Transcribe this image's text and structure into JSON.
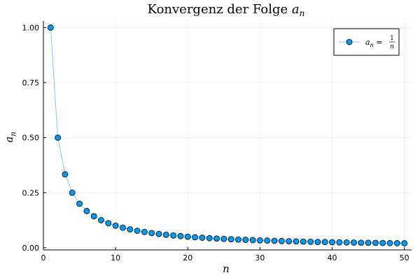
{
  "chart_data": {
    "type": "scatter",
    "title_text": "Konvergenz der Folge ",
    "title_var": "a",
    "title_sub": "n",
    "xlabel": "n",
    "ylabel_var": "a",
    "ylabel_sub": "n",
    "xlim": [
      0,
      51
    ],
    "ylim": [
      -0.01,
      1.03
    ],
    "x_ticks": [
      0,
      10,
      20,
      30,
      40,
      50
    ],
    "y_ticks": [
      0.0,
      0.25,
      0.5,
      0.75,
      1.0
    ],
    "x_tick_labels": [
      "0",
      "10",
      "20",
      "30",
      "40",
      "50"
    ],
    "y_tick_labels": [
      "0.00",
      "0.25",
      "0.50",
      "0.75",
      "1.00"
    ],
    "grid": true,
    "legend_position": "top-right",
    "series": [
      {
        "name": "a_n = 1/n",
        "legend_lhs_var": "a",
        "legend_lhs_sub": "n",
        "legend_eq": " = ",
        "legend_num": "1",
        "legend_den": "n",
        "marker": "circle",
        "marker_color": "#009af9",
        "line_color": "#7fc8f8",
        "x": [
          1,
          2,
          3,
          4,
          5,
          6,
          7,
          8,
          9,
          10,
          11,
          12,
          13,
          14,
          15,
          16,
          17,
          18,
          19,
          20,
          21,
          22,
          23,
          24,
          25,
          26,
          27,
          28,
          29,
          30,
          31,
          32,
          33,
          34,
          35,
          36,
          37,
          38,
          39,
          40,
          41,
          42,
          43,
          44,
          45,
          46,
          47,
          48,
          49,
          50
        ],
        "y": [
          1.0,
          0.5,
          0.3333,
          0.25,
          0.2,
          0.1667,
          0.1429,
          0.125,
          0.1111,
          0.1,
          0.0909,
          0.0833,
          0.0769,
          0.0714,
          0.0667,
          0.0625,
          0.0588,
          0.0556,
          0.0526,
          0.05,
          0.0476,
          0.0455,
          0.0435,
          0.0417,
          0.04,
          0.0385,
          0.037,
          0.0357,
          0.0345,
          0.0333,
          0.0323,
          0.0313,
          0.0303,
          0.0294,
          0.0286,
          0.0278,
          0.027,
          0.0263,
          0.0256,
          0.025,
          0.0244,
          0.0238,
          0.0233,
          0.0227,
          0.0222,
          0.0217,
          0.0213,
          0.0208,
          0.0204,
          0.02
        ]
      }
    ]
  }
}
